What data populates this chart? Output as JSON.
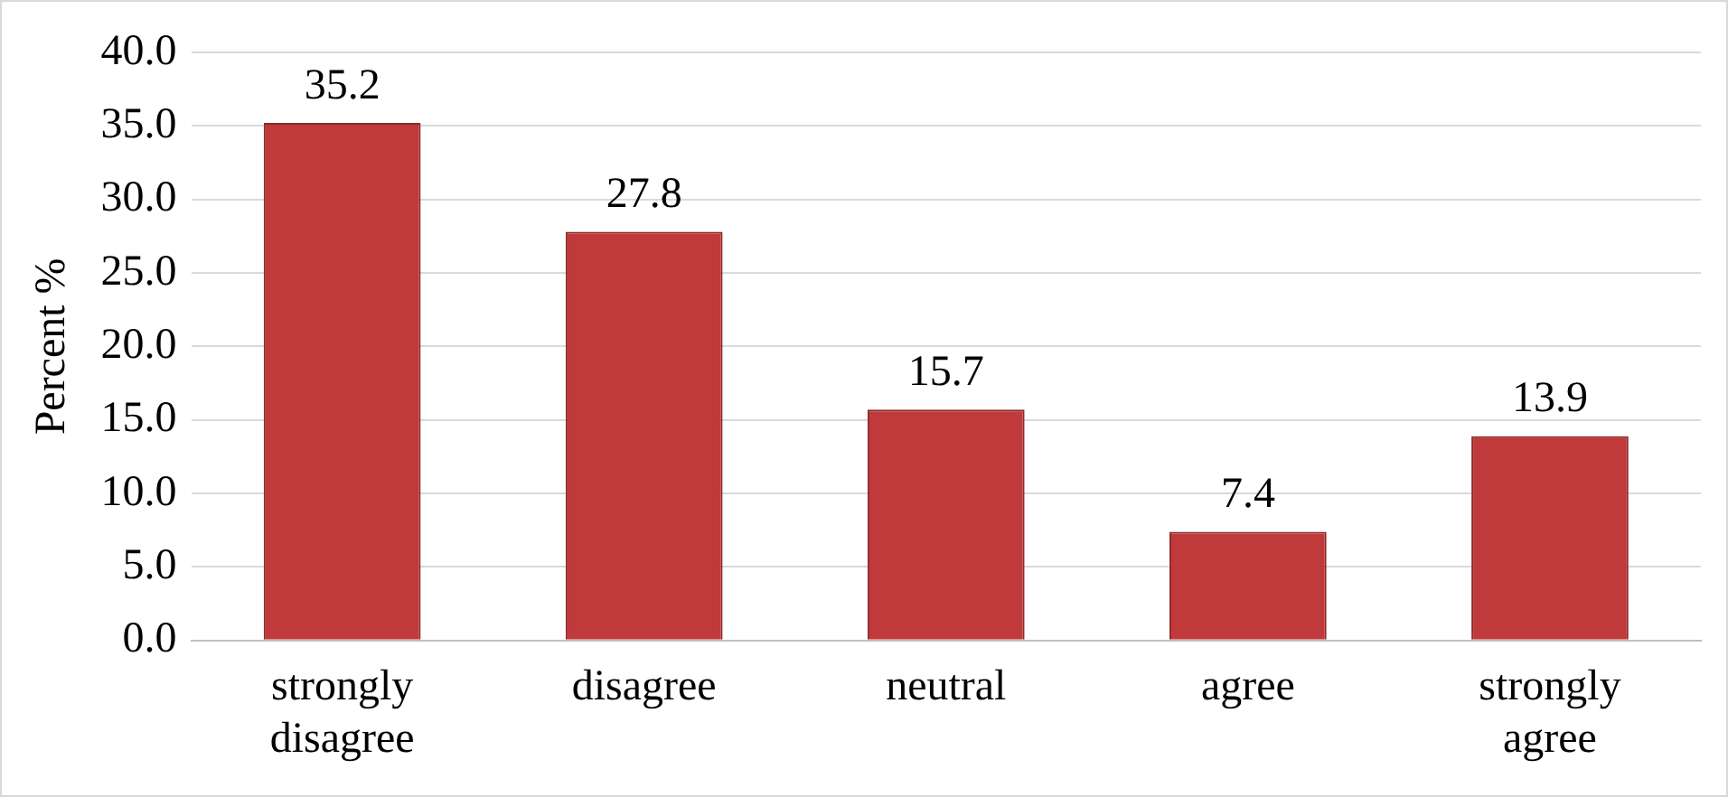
{
  "chart_data": {
    "type": "bar",
    "ylabel": "Percent %",
    "categories": [
      "strongly disagree",
      "disagree",
      "neutral",
      "agree",
      "strongly agree"
    ],
    "values": [
      35.2,
      27.8,
      15.7,
      7.4,
      13.9
    ],
    "color": "#c0393b",
    "ylim": [
      0,
      40
    ],
    "yticks": [
      {
        "value": 0,
        "label": "0.0"
      },
      {
        "value": 5,
        "label": "5.0"
      },
      {
        "value": 10,
        "label": "10.0"
      },
      {
        "value": 15,
        "label": "15.0"
      },
      {
        "value": 20,
        "label": "20.0"
      },
      {
        "value": 25,
        "label": "25.0"
      },
      {
        "value": 30,
        "label": "30.0"
      },
      {
        "value": 35,
        "label": "35.0"
      },
      {
        "value": 40,
        "label": "40.0"
      }
    ],
    "grid": "y",
    "data_labels": true,
    "legend": false
  }
}
